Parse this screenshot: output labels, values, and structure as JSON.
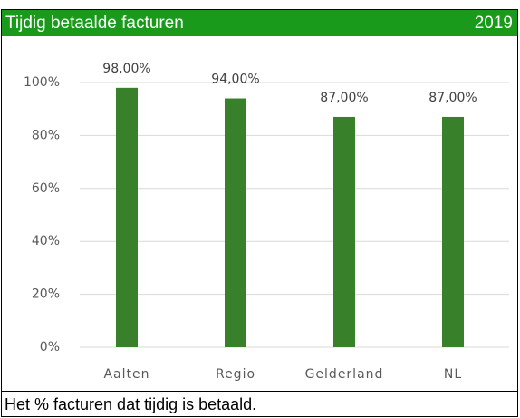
{
  "chart_data": {
    "type": "bar",
    "title": "Tijdig betaalde facturen",
    "year": "2019",
    "caption": "Het % facturen dat tijdig is betaald.",
    "categories": [
      "Aalten",
      "Regio",
      "Gelderland",
      "NL"
    ],
    "values": [
      98,
      94,
      87,
      87
    ],
    "value_labels": [
      "98,00%",
      "94,00%",
      "87,00%",
      "87,00%"
    ],
    "color": "#38802a",
    "ylim": [
      0,
      100
    ],
    "yticks": [
      {
        "value": 0,
        "label": "0%"
      },
      {
        "value": 20,
        "label": "20%"
      },
      {
        "value": 40,
        "label": "40%"
      },
      {
        "value": 60,
        "label": "60%"
      },
      {
        "value": 80,
        "label": "80%"
      },
      {
        "value": 100,
        "label": "100%"
      }
    ],
    "grid": true
  }
}
